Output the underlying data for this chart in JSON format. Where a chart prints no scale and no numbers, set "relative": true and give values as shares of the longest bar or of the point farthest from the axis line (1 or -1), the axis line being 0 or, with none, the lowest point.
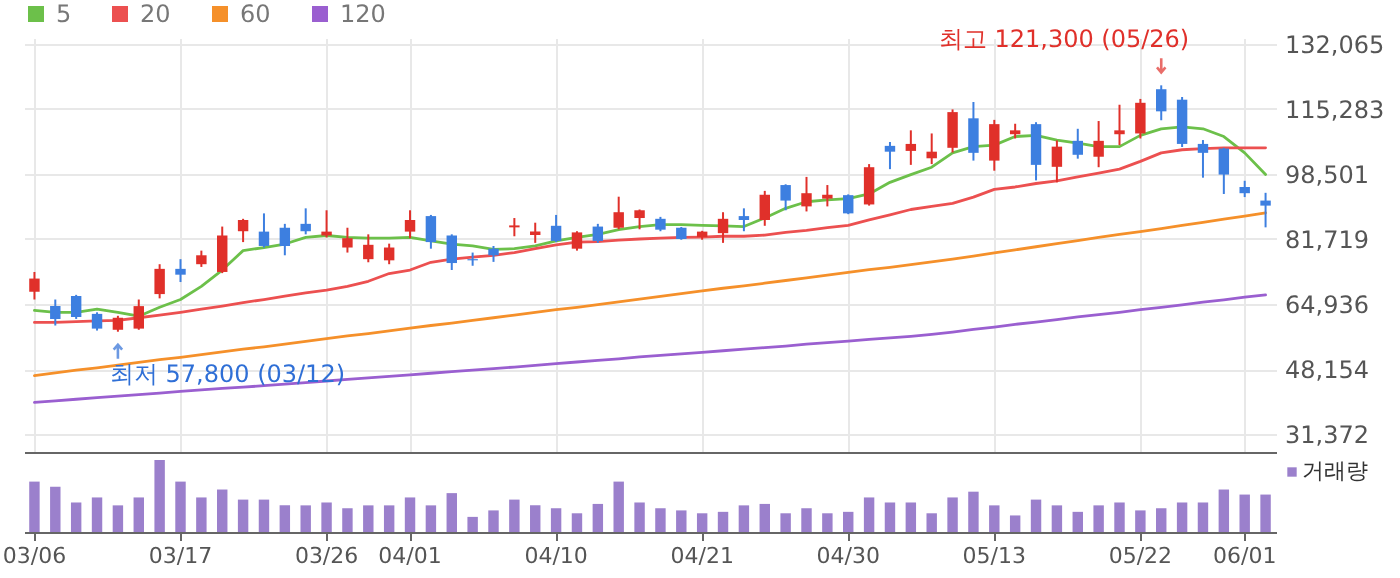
{
  "chart_data": [
    {
      "type": "candlestick",
      "categories": [
        null,
        null,
        null,
        null,
        null,
        null,
        null,
        null,
        null,
        null,
        null,
        null,
        null,
        null,
        null,
        null,
        null,
        null,
        null,
        null,
        null,
        null,
        null,
        null,
        null,
        null,
        null,
        null,
        null,
        null,
        null,
        null,
        null,
        null,
        null,
        null,
        null,
        null,
        null,
        null,
        null,
        null,
        null,
        null,
        null,
        null,
        null,
        null,
        null,
        null,
        null,
        null,
        null,
        null,
        null,
        null,
        null,
        null,
        null,
        null
      ],
      "ohlc": [
        [
          68100,
          73200,
          66100,
          71500
        ],
        [
          64400,
          66100,
          59400,
          61100
        ],
        [
          67000,
          67300,
          61100,
          61600
        ],
        [
          62400,
          62800,
          58100,
          58600
        ],
        [
          58300,
          61900,
          57800,
          61400
        ],
        [
          58600,
          66100,
          58300,
          64400
        ],
        [
          67500,
          75200,
          66400,
          74000
        ],
        [
          74000,
          76500,
          70600,
          72500
        ],
        [
          75200,
          78700,
          74500,
          77500
        ],
        [
          73200,
          84900,
          72900,
          82600
        ],
        [
          83700,
          86900,
          80900,
          86600
        ],
        [
          83600,
          88300,
          79500,
          79900
        ],
        [
          84600,
          85600,
          77500,
          79900
        ],
        [
          85600,
          89600,
          82900,
          83700
        ],
        [
          82600,
          89100,
          82100,
          83600
        ],
        [
          79500,
          84600,
          78200,
          81900
        ],
        [
          76500,
          82900,
          75700,
          80200
        ],
        [
          76200,
          80500,
          75200,
          79500
        ],
        [
          83600,
          89100,
          81900,
          86600
        ],
        [
          87600,
          87900,
          79200,
          80900
        ],
        [
          82600,
          82900,
          73700,
          75500
        ],
        [
          76500,
          78200,
          74800,
          76200
        ],
        [
          79200,
          79900,
          75800,
          77500
        ],
        [
          84700,
          87100,
          82400,
          85200
        ],
        [
          82700,
          85900,
          80700,
          83600
        ],
        [
          85100,
          87900,
          80900,
          81200
        ],
        [
          79200,
          83700,
          78700,
          83400
        ],
        [
          84900,
          85600,
          80700,
          81200
        ],
        [
          84600,
          92600,
          84200,
          88600
        ],
        [
          87100,
          89300,
          84200,
          89100
        ],
        [
          86900,
          87400,
          83700,
          84100
        ],
        [
          84600,
          84800,
          81500,
          81700
        ],
        [
          82200,
          83800,
          81500,
          83600
        ],
        [
          83200,
          88600,
          80700,
          86900
        ],
        [
          87600,
          89600,
          83700,
          86600
        ],
        [
          86600,
          94100,
          85100,
          93100
        ],
        [
          95600,
          95800,
          89100,
          91600
        ],
        [
          90100,
          97700,
          88800,
          93500
        ],
        [
          92100,
          95600,
          90100,
          93100
        ],
        [
          93000,
          93200,
          88100,
          88300
        ],
        [
          90600,
          101000,
          90300,
          100200
        ],
        [
          105700,
          106700,
          99700,
          104200
        ],
        [
          104400,
          109700,
          100800,
          106200
        ],
        [
          102500,
          108900,
          101000,
          104200
        ],
        [
          105200,
          115100,
          104000,
          114400
        ],
        [
          112800,
          117000,
          101900,
          103900
        ],
        [
          101900,
          112400,
          99300,
          111300
        ],
        [
          108700,
          111400,
          107600,
          109700
        ],
        [
          111300,
          111800,
          96800,
          100800
        ],
        [
          100300,
          107100,
          96300,
          105500
        ],
        [
          107000,
          110100,
          102400,
          103400
        ],
        [
          102900,
          112100,
          100200,
          107000
        ],
        [
          108700,
          116300,
          105900,
          109700
        ],
        [
          108900,
          117800,
          107600,
          116800
        ],
        [
          120300,
          121300,
          112300,
          114600
        ],
        [
          117600,
          118300,
          105400,
          106200
        ],
        [
          106200,
          107200,
          97500,
          103900
        ],
        [
          105000,
          105200,
          93300,
          98300
        ],
        [
          95100,
          96700,
          92500,
          93500
        ],
        [
          91600,
          93600,
          84700,
          90300
        ]
      ],
      "colors": [
        "#e0302a",
        "#3d7fe0",
        "#3d7fe0",
        "#3d7fe0",
        "#e0302a",
        "#e0302a",
        "#e0302a",
        "#3d7fe0",
        "#e0302a",
        "#e0302a",
        "#e0302a",
        "#3d7fe0",
        "#3d7fe0",
        "#3d7fe0",
        "#e0302a",
        "#e0302a",
        "#e0302a",
        "#e0302a",
        "#e0302a",
        "#3d7fe0",
        "#3d7fe0",
        "#3d7fe0",
        "#3d7fe0",
        "#e0302a",
        "#e0302a",
        "#3d7fe0",
        "#e0302a",
        "#3d7fe0",
        "#e0302a",
        "#e0302a",
        "#3d7fe0",
        "#3d7fe0",
        "#e0302a",
        "#e0302a",
        "#3d7fe0",
        "#e0302a",
        "#3d7fe0",
        "#e0302a",
        "#e0302a",
        "#3d7fe0",
        "#e0302a",
        "#3d7fe0",
        "#e0302a",
        "#e0302a",
        "#e0302a",
        "#3d7fe0",
        "#e0302a",
        "#e0302a",
        "#3d7fe0",
        "#e0302a",
        "#3d7fe0",
        "#e0302a",
        "#e0302a",
        "#e0302a",
        "#3d7fe0",
        "#3d7fe0",
        "#3d7fe0",
        "#3d7fe0",
        "#3d7fe0",
        "#3d7fe0"
      ],
      "series": [
        {
          "name": "5",
          "type": "line",
          "color": "#6cc04a",
          "values": [
            63300,
            62800,
            62800,
            63600,
            62800,
            61800,
            64100,
            66100,
            69500,
            73700,
            78700,
            79500,
            80400,
            82100,
            82600,
            82100,
            81900,
            81900,
            82100,
            81200,
            80400,
            79900,
            79000,
            79200,
            79900,
            81200,
            82100,
            82900,
            84100,
            84900,
            85400,
            85400,
            85200,
            85100,
            84900,
            87100,
            89600,
            91300,
            91800,
            92100,
            93300,
            96300,
            98300,
            100200,
            103900,
            105500,
            105900,
            108100,
            108400,
            107200,
            106400,
            105500,
            105500,
            108400,
            110100,
            110600,
            110100,
            108100,
            103900,
            98300
          ]
        },
        {
          "name": "20",
          "type": "line",
          "color": "#ec5050",
          "values": [
            60200,
            60200,
            60400,
            60600,
            60700,
            61400,
            62100,
            62800,
            63600,
            64400,
            65300,
            66100,
            67000,
            67800,
            68500,
            69500,
            70800,
            72800,
            73700,
            75700,
            76500,
            77000,
            77500,
            78200,
            79200,
            80200,
            80900,
            81000,
            81400,
            81700,
            81900,
            82100,
            82200,
            82400,
            82400,
            82700,
            83400,
            83900,
            84600,
            85200,
            86600,
            87900,
            89300,
            90100,
            90900,
            92500,
            94500,
            95100,
            96000,
            96700,
            97700,
            98700,
            99700,
            101700,
            103900,
            104700,
            105000,
            105200,
            105200,
            105200
          ]
        },
        {
          "name": "60",
          "type": "line",
          "color": "#f5902a",
          "values": [
            46500,
            47200,
            47900,
            48500,
            49200,
            49900,
            50600,
            51200,
            51900,
            52600,
            53300,
            53900,
            54600,
            55300,
            56000,
            56700,
            57300,
            58000,
            58700,
            59400,
            60000,
            60700,
            61400,
            62100,
            62800,
            63500,
            64100,
            64800,
            65500,
            66200,
            66900,
            67600,
            68300,
            69000,
            69600,
            70300,
            71000,
            71700,
            72400,
            73100,
            73800,
            74400,
            75100,
            75800,
            76500,
            77300,
            78100,
            78900,
            79700,
            80500,
            81300,
            82100,
            82900,
            83600,
            84400,
            85200,
            86000,
            86800,
            87600,
            88400
          ]
        },
        {
          "name": "120",
          "type": "line",
          "color": "#9a5fd0",
          "values": [
            39600,
            40000,
            40400,
            40800,
            41200,
            41600,
            42000,
            42400,
            42800,
            43200,
            43500,
            43900,
            44300,
            44700,
            45100,
            45500,
            45900,
            46300,
            46700,
            47100,
            47500,
            47900,
            48300,
            48700,
            49100,
            49600,
            50000,
            50400,
            50800,
            51300,
            51700,
            52100,
            52500,
            52900,
            53300,
            53700,
            54100,
            54600,
            55000,
            55400,
            55800,
            56200,
            56600,
            57100,
            57700,
            58400,
            59000,
            59700,
            60300,
            60900,
            61600,
            62200,
            62800,
            63500,
            64100,
            64700,
            65400,
            66000,
            66700,
            67300
          ]
        }
      ],
      "ylim": [
        26800,
        133500
      ],
      "yticks": [
        {
          "value": 31372,
          "label": "31,372"
        },
        {
          "value": 48154,
          "label": "48,154"
        },
        {
          "value": 64936,
          "label": "64,936"
        },
        {
          "value": 81719,
          "label": "81,719"
        },
        {
          "value": 98501,
          "label": "98,501"
        },
        {
          "value": 115283,
          "label": "115,283"
        },
        {
          "value": 132065,
          "label": "132,065"
        }
      ],
      "grid": true,
      "legend": "top left",
      "tick_labels": "y",
      "annotations": [
        "최저 57,800 (03/12)",
        "최고 121,300 (05/26)"
      ]
    },
    {
      "type": "bar",
      "relative": true,
      "categories": [
        "03/06",
        null,
        null,
        null,
        null,
        null,
        null,
        "03/17",
        null,
        null,
        null,
        null,
        null,
        null,
        "03/26",
        null,
        null,
        null,
        "04/01",
        null,
        null,
        null,
        null,
        null,
        null,
        "04/10",
        null,
        null,
        null,
        null,
        null,
        null,
        "04/21",
        null,
        null,
        null,
        null,
        null,
        null,
        "04/30",
        null,
        null,
        null,
        null,
        null,
        null,
        "05/13",
        null,
        null,
        null,
        null,
        null,
        null,
        "05/22",
        null,
        null,
        null,
        null,
        "06/01",
        null
      ],
      "series": [
        {
          "name": "거래량",
          "color": "#9b80cc",
          "values": [
            0.7,
            0.63,
            0.41,
            0.48,
            0.37,
            0.48,
            1,
            0.7,
            0.48,
            0.59,
            0.45,
            0.45,
            0.37,
            0.37,
            0.41,
            0.33,
            0.37,
            0.37,
            0.48,
            0.37,
            0.54,
            0.21,
            0.3,
            0.45,
            0.37,
            0.33,
            0.26,
            0.39,
            0.7,
            0.41,
            0.33,
            0.3,
            0.26,
            0.28,
            0.37,
            0.39,
            0.26,
            0.33,
            0.26,
            0.28,
            0.48,
            0.41,
            0.41,
            0.26,
            0.48,
            0.56,
            0.37,
            0.23,
            0.45,
            0.37,
            0.28,
            0.37,
            0.41,
            0.3,
            0.33,
            0.41,
            0.41,
            0.59,
            0.52,
            0.52
          ]
        }
      ],
      "legend": "right",
      "tick_labels": "x"
    }
  ]
}
